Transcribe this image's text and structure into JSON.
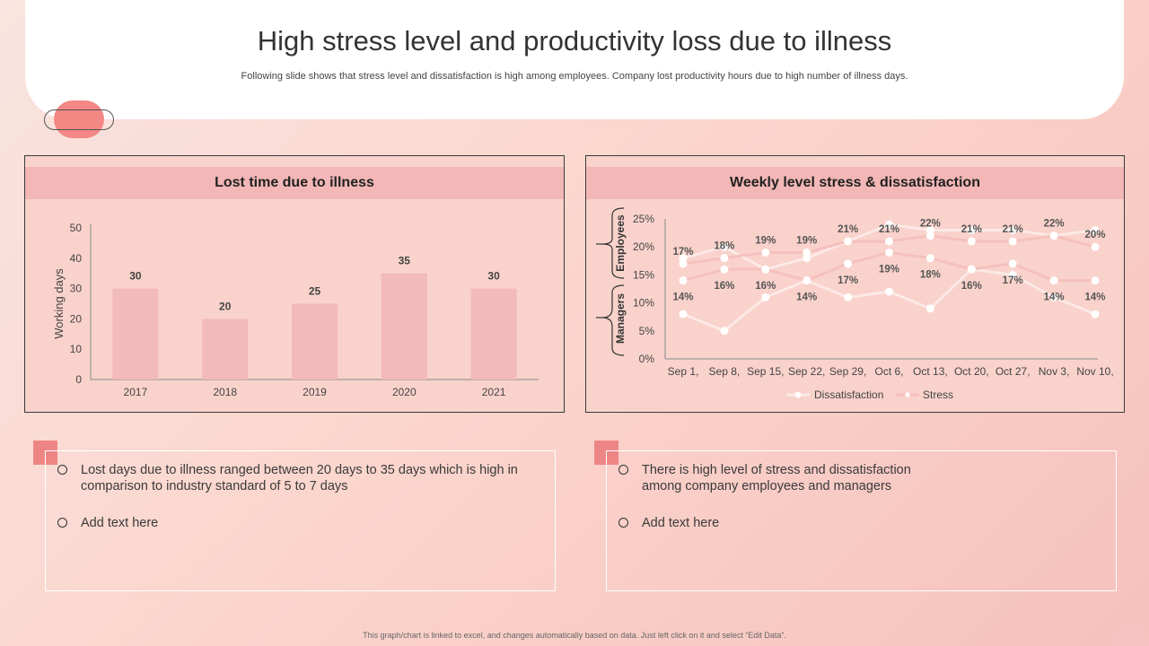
{
  "header": {
    "title": "High stress level and productivity loss due to illness",
    "subtitle": "Following slide shows that stress level and dissatisfaction is high among employees. Company lost productivity hours due to high number of illness days."
  },
  "left_panel": {
    "title": "Lost time due to illness"
  },
  "right_panel": {
    "title": "Weekly level stress  & dissatisfaction"
  },
  "chart_data": [
    {
      "type": "bar",
      "title": "Lost time due to illness",
      "categories": [
        "2017",
        "2018",
        "2019",
        "2020",
        "2021"
      ],
      "values": [
        30,
        20,
        25,
        35,
        30
      ],
      "value_labels": [
        "30",
        "20",
        "25",
        "35",
        "30"
      ],
      "ylabel": "Working days",
      "xlabel": "",
      "ylim": [
        0,
        50
      ],
      "yticks": [
        "0",
        "10",
        "20",
        "30",
        "40",
        "50"
      ],
      "color": "#f2bab8"
    },
    {
      "type": "line",
      "title": "Weekly level stress  & dissatisfaction",
      "categories": [
        "Sep 1,",
        "Sep 8,",
        "Sep 15,",
        "Sep 22,",
        "Sep 29,",
        "Oct 6,",
        "Oct 13,",
        "Oct 20,",
        "Oct 27,",
        "Nov 3,",
        "Nov 10,"
      ],
      "ylim": [
        0,
        25
      ],
      "yticks": [
        "0%",
        "5%",
        "10%",
        "15%",
        "20%",
        "25%"
      ],
      "group_labels": [
        "Employees",
        "Managers"
      ],
      "legend": [
        "Dissatisfaction",
        "Stress"
      ],
      "series": [
        {
          "name": "Employees Dissatisfaction",
          "legend": "Dissatisfaction",
          "values": [
            18,
            20,
            16,
            18,
            21,
            24,
            23,
            23,
            23,
            22,
            23
          ],
          "color": "#fce9e6"
        },
        {
          "name": "Employees Stress",
          "legend": "Stress",
          "values": [
            17,
            18,
            19,
            19,
            21,
            21,
            22,
            21,
            21,
            22,
            20
          ],
          "color": "#f5c0bd",
          "labels": [
            "17%",
            "18%",
            "19%",
            "19%",
            "21%",
            "21%",
            "22%",
            "21%",
            "21%",
            "22%",
            "20%"
          ]
        },
        {
          "name": "Managers Dissatisfaction",
          "legend": "Dissatisfaction",
          "values": [
            8,
            5,
            11,
            14,
            11,
            12,
            9,
            16,
            15,
            11,
            8
          ],
          "color": "#fce9e6"
        },
        {
          "name": "Managers Stress",
          "legend": "Stress",
          "values": [
            14,
            16,
            16,
            14,
            17,
            19,
            18,
            16,
            17,
            14,
            14
          ],
          "color": "#f5c0bd",
          "labels": [
            "14%",
            "16%",
            "16%",
            "14%",
            "17%",
            "19%",
            "18%",
            "16%",
            "17%",
            "14%",
            "14%"
          ]
        }
      ]
    }
  ],
  "text_boxes": {
    "left": {
      "bullets": [
        "Lost days due to illness ranged between 20 days to 35 days which is high in comparison to industry standard of 5 to 7 days",
        "Add text here"
      ]
    },
    "right": {
      "bullets": [
        "There is high level of stress and dissatisfaction among company employees and managers",
        "Add text here"
      ]
    }
  },
  "footer": "This graph/chart is linked to excel, and changes automatically based on data. Just left click on it and select “Edit Data”."
}
